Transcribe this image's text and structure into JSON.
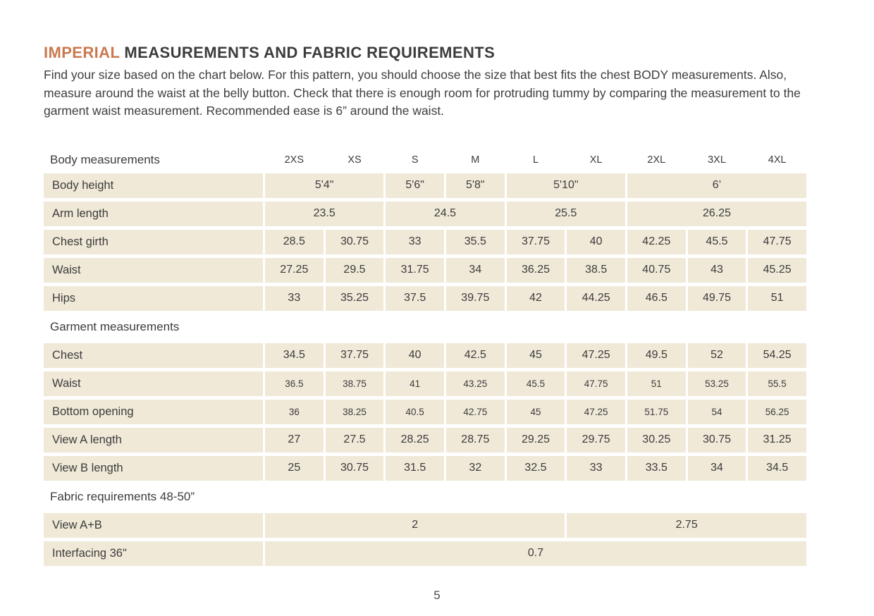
{
  "page": {
    "title": {
      "highlight": "IMPERIAL",
      "rest": " MEASUREMENTS AND FABRIC REQUIREMENTS"
    },
    "intro": "Find your size based on the chart below. For this pattern, you should choose the size that best fits the chest BODY measurements.  Also, measure around the waist at the belly button. Check that there is enough room for protruding tummy by comparing the measurement to the garment waist measurement. Recommended ease is 6” around the waist.",
    "page_number": "5"
  },
  "colors": {
    "accent": "#c9794f",
    "cell_background": "#f0e9d8",
    "text": "#3c3c3c"
  },
  "table": {
    "corner_label": "Body measurements",
    "sizes": [
      "2XS",
      "XS",
      "S",
      "M",
      "L",
      "XL",
      "2XL",
      "3XL",
      "4XL"
    ],
    "rows": [
      {
        "id": "body-height",
        "label": "Body height",
        "cells": [
          {
            "span": 2,
            "v": "5'4\""
          },
          {
            "span": 1,
            "v": "5'6\""
          },
          {
            "span": 1,
            "v": "5'8\""
          },
          {
            "span": 2,
            "v": "5'10\""
          },
          {
            "span": 3,
            "v": "6’"
          }
        ]
      },
      {
        "id": "arm-length",
        "label": "Arm length",
        "cells": [
          {
            "span": 2,
            "v": "23.5"
          },
          {
            "span": 2,
            "v": "24.5"
          },
          {
            "span": 2,
            "v": "25.5"
          },
          {
            "span": 3,
            "v": "26.25"
          }
        ]
      },
      {
        "id": "chest-girth",
        "label": "Chest girth",
        "cells": [
          {
            "span": 1,
            "v": "28.5"
          },
          {
            "span": 1,
            "v": "30.75"
          },
          {
            "span": 1,
            "v": "33"
          },
          {
            "span": 1,
            "v": "35.5"
          },
          {
            "span": 1,
            "v": "37.75"
          },
          {
            "span": 1,
            "v": "40"
          },
          {
            "span": 1,
            "v": "42.25"
          },
          {
            "span": 1,
            "v": "45.5"
          },
          {
            "span": 1,
            "v": "47.75"
          }
        ]
      },
      {
        "id": "waist-body",
        "label": "Waist",
        "cells": [
          {
            "span": 1,
            "v": "27.25"
          },
          {
            "span": 1,
            "v": "29.5"
          },
          {
            "span": 1,
            "v": "31.75"
          },
          {
            "span": 1,
            "v": "34"
          },
          {
            "span": 1,
            "v": "36.25"
          },
          {
            "span": 1,
            "v": "38.5"
          },
          {
            "span": 1,
            "v": "40.75"
          },
          {
            "span": 1,
            "v": "43"
          },
          {
            "span": 1,
            "v": "45.25"
          }
        ]
      },
      {
        "id": "hips",
        "label": "Hips",
        "cells": [
          {
            "span": 1,
            "v": "33"
          },
          {
            "span": 1,
            "v": "35.25"
          },
          {
            "span": 1,
            "v": "37.5"
          },
          {
            "span": 1,
            "v": "39.75"
          },
          {
            "span": 1,
            "v": "42"
          },
          {
            "span": 1,
            "v": "44.25"
          },
          {
            "span": 1,
            "v": "46.5"
          },
          {
            "span": 1,
            "v": "49.75"
          },
          {
            "span": 1,
            "v": "51"
          }
        ]
      },
      {
        "id": "garment-section",
        "section": "Garment measurements"
      },
      {
        "id": "chest-garment",
        "label": "Chest",
        "cells": [
          {
            "span": 1,
            "v": "34.5"
          },
          {
            "span": 1,
            "v": "37.75"
          },
          {
            "span": 1,
            "v": "40"
          },
          {
            "span": 1,
            "v": "42.5"
          },
          {
            "span": 1,
            "v": "45"
          },
          {
            "span": 1,
            "v": "47.25"
          },
          {
            "span": 1,
            "v": "49.5"
          },
          {
            "span": 1,
            "v": "52"
          },
          {
            "span": 1,
            "v": "54.25"
          }
        ]
      },
      {
        "id": "waist-garment",
        "label": "Waist",
        "small": true,
        "cells": [
          {
            "span": 1,
            "v": "36.5"
          },
          {
            "span": 1,
            "v": "38.75"
          },
          {
            "span": 1,
            "v": "41"
          },
          {
            "span": 1,
            "v": "43.25"
          },
          {
            "span": 1,
            "v": "45.5"
          },
          {
            "span": 1,
            "v": "47.75"
          },
          {
            "span": 1,
            "v": "51"
          },
          {
            "span": 1,
            "v": "53.25"
          },
          {
            "span": 1,
            "v": "55.5"
          }
        ]
      },
      {
        "id": "bottom-opening",
        "label": "Bottom opening",
        "small": true,
        "cells": [
          {
            "span": 1,
            "v": "36"
          },
          {
            "span": 1,
            "v": "38.25"
          },
          {
            "span": 1,
            "v": "40.5"
          },
          {
            "span": 1,
            "v": "42.75"
          },
          {
            "span": 1,
            "v": "45"
          },
          {
            "span": 1,
            "v": "47.25"
          },
          {
            "span": 1,
            "v": "51.75"
          },
          {
            "span": 1,
            "v": "54"
          },
          {
            "span": 1,
            "v": "56.25"
          }
        ]
      },
      {
        "id": "view-a-length",
        "label": "View A length",
        "cells": [
          {
            "span": 1,
            "v": "27"
          },
          {
            "span": 1,
            "v": "27.5"
          },
          {
            "span": 1,
            "v": "28.25"
          },
          {
            "span": 1,
            "v": "28.75"
          },
          {
            "span": 1,
            "v": "29.25"
          },
          {
            "span": 1,
            "v": "29.75"
          },
          {
            "span": 1,
            "v": "30.25"
          },
          {
            "span": 1,
            "v": "30.75"
          },
          {
            "span": 1,
            "v": "31.25"
          }
        ]
      },
      {
        "id": "view-b-length",
        "label": "View B length",
        "cells": [
          {
            "span": 1,
            "v": "25"
          },
          {
            "span": 1,
            "v": "30.75"
          },
          {
            "span": 1,
            "v": "31.5"
          },
          {
            "span": 1,
            "v": "32"
          },
          {
            "span": 1,
            "v": "32.5"
          },
          {
            "span": 1,
            "v": "33"
          },
          {
            "span": 1,
            "v": "33.5"
          },
          {
            "span": 1,
            "v": "34"
          },
          {
            "span": 1,
            "v": "34.5"
          }
        ]
      },
      {
        "id": "fabric-section",
        "section": "Fabric requirements 48-50”"
      },
      {
        "id": "view-a-b",
        "label": "View A+B",
        "cells": [
          {
            "span": 5,
            "v": "2"
          },
          {
            "span": 4,
            "v": "2.75"
          }
        ]
      },
      {
        "id": "interfacing",
        "label": "Interfacing 36\"",
        "cells": [
          {
            "span": 9,
            "v": "0.7"
          }
        ]
      }
    ]
  }
}
